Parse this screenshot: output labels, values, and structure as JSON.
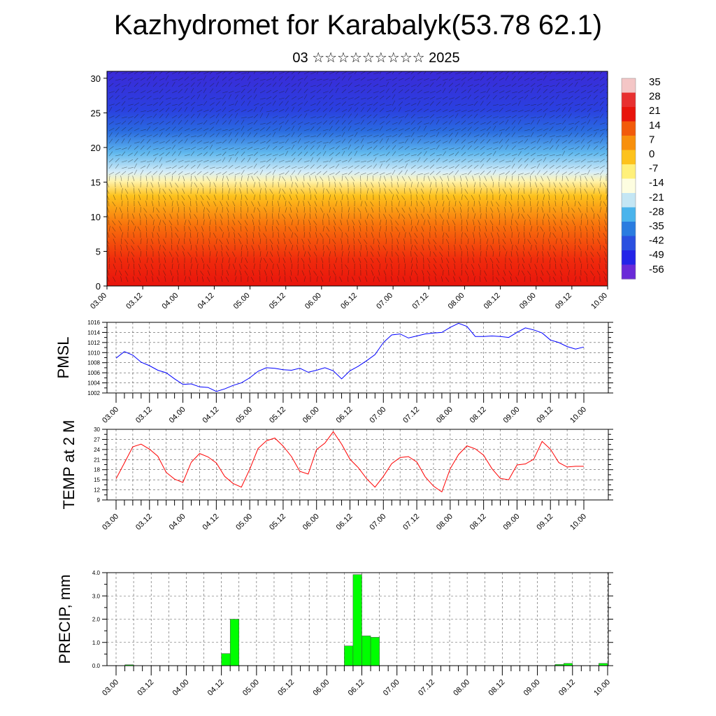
{
  "title": "Kazhydromet for Karabalyk(53.78 62.1)",
  "subtitle": "03 ☆☆☆☆☆☆☆☆☆ 2025",
  "x_tick_labels": [
    "03.00",
    "03.12",
    "04.00",
    "04.12",
    "05.00",
    "05.12",
    "06.00",
    "06.12",
    "07.00",
    "07.12",
    "08.00",
    "08.12",
    "09.00",
    "09.12",
    "10.00"
  ],
  "chart_data": [
    {
      "type": "heatmap",
      "description_x": "forecast time",
      "yticks": [
        0,
        5,
        10,
        15,
        20,
        25,
        30
      ],
      "ylim": [
        0,
        31
      ],
      "colorbar_labels": [
        "35",
        "28",
        "21",
        "14",
        "7",
        "0",
        "-7",
        "-14",
        "-21",
        "-28",
        "-35",
        "-42",
        "-49",
        "-56"
      ],
      "colorbar_colors": [
        "#f4c6c6",
        "#e83030",
        "#e8140c",
        "#f25a0a",
        "#f8900c",
        "#fdc21c",
        "#fff07a",
        "#fdfde0",
        "#c4e6f4",
        "#4ab4ec",
        "#2a7ce0",
        "#2a50e0",
        "#2424e8",
        "#6a2ad8"
      ]
    },
    {
      "type": "line",
      "ylabel": "PMSL",
      "ylim": [
        1002,
        1016
      ],
      "yticks": [
        1002,
        1004,
        1006,
        1008,
        1010,
        1012,
        1014,
        1016
      ],
      "color": "#0000ff",
      "x": [
        0,
        3,
        6,
        9,
        12,
        15,
        18,
        21,
        24,
        27,
        30,
        33,
        36,
        39,
        42,
        45,
        48,
        51,
        54,
        57,
        60,
        63,
        66,
        69,
        72,
        75,
        78,
        81,
        84,
        87,
        90,
        93,
        96,
        99,
        102,
        105,
        108,
        111,
        114,
        117,
        120,
        123,
        126,
        129,
        132,
        135,
        138,
        141,
        144,
        147,
        150,
        153,
        156,
        159,
        162,
        165,
        168
      ],
      "values": [
        1008.9,
        1010.2,
        1009.5,
        1008.1,
        1007.4,
        1006.5,
        1006.0,
        1004.8,
        1003.7,
        1003.8,
        1003.2,
        1003.1,
        1002.3,
        1002.8,
        1003.5,
        1004.0,
        1005.0,
        1006.3,
        1007.0,
        1006.9,
        1006.6,
        1006.5,
        1006.9,
        1006.1,
        1006.5,
        1007.0,
        1006.4,
        1004.8,
        1006.4,
        1007.3,
        1008.4,
        1009.6,
        1012.0,
        1013.5,
        1013.7,
        1012.9,
        1013.3,
        1013.7,
        1013.9,
        1014.0,
        1015.0,
        1015.8,
        1015.2,
        1013.2,
        1013.2,
        1013.3,
        1013.2,
        1013.0,
        1014.0,
        1014.9,
        1014.5,
        1013.9,
        1012.5,
        1012.0,
        1011.2,
        1010.7,
        1011.1
      ]
    },
    {
      "type": "line",
      "ylabel": "TEMP at 2 M",
      "ylim": [
        9,
        30
      ],
      "yticks": [
        9,
        12,
        15,
        18,
        21,
        24,
        27,
        30
      ],
      "color": "#ff0000",
      "x": [
        0,
        3,
        6,
        9,
        12,
        15,
        18,
        21,
        24,
        27,
        30,
        33,
        36,
        39,
        42,
        45,
        48,
        51,
        54,
        57,
        60,
        63,
        66,
        69,
        72,
        75,
        78,
        81,
        84,
        87,
        90,
        93,
        96,
        99,
        102,
        105,
        108,
        111,
        114,
        117,
        120,
        123,
        126,
        129,
        132,
        135,
        138,
        141,
        144,
        147,
        150,
        153,
        156,
        159,
        162,
        165,
        168
      ],
      "values": [
        15.3,
        20.0,
        24.8,
        25.6,
        24.1,
        22.0,
        17.2,
        15.2,
        14.2,
        20.2,
        22.8,
        21.8,
        20.0,
        16.0,
        13.9,
        12.8,
        18.1,
        24.3,
        26.6,
        27.4,
        25.0,
        21.9,
        17.5,
        16.7,
        24.0,
        25.9,
        29.3,
        25.6,
        21.1,
        18.6,
        15.3,
        12.8,
        16.0,
        19.8,
        21.6,
        21.9,
        20.3,
        15.9,
        13.1,
        11.4,
        18.3,
        22.5,
        25.1,
        24.2,
        22.3,
        18.3,
        15.4,
        15.0,
        19.4,
        19.7,
        21.1,
        26.4,
        24.1,
        20.1,
        18.8,
        19.0,
        19.0
      ]
    },
    {
      "type": "bar",
      "ylabel": "PRECIP, mm",
      "ylim": [
        0,
        4
      ],
      "yticks": [
        "0.0",
        "1.0",
        "2.0",
        "3.0",
        "4.0"
      ],
      "color": "#00ff00",
      "bar_hours": 3,
      "x": [
        0,
        3,
        6,
        9,
        12,
        15,
        18,
        21,
        24,
        27,
        30,
        33,
        36,
        39,
        42,
        45,
        48,
        51,
        54,
        57,
        60,
        63,
        66,
        69,
        72,
        75,
        78,
        81,
        84,
        87,
        90,
        93,
        96,
        99,
        102,
        105,
        108,
        111,
        114,
        117,
        120,
        123,
        126,
        129,
        132,
        135,
        138,
        141,
        144,
        147,
        150,
        153,
        156,
        159,
        162,
        165
      ],
      "values": [
        0,
        0.04,
        0,
        0,
        0,
        0,
        0,
        0,
        0,
        0,
        0,
        0,
        0.52,
        2.0,
        0,
        0,
        0,
        0,
        0,
        0,
        0,
        0,
        0,
        0,
        0,
        0,
        0.85,
        3.92,
        1.28,
        1.22,
        0,
        0,
        0,
        0,
        0,
        0,
        0,
        0,
        0,
        0,
        0,
        0,
        0,
        0,
        0,
        0,
        0,
        0,
        0,
        0,
        0.05,
        0.1,
        0,
        0,
        0,
        0.1
      ]
    }
  ]
}
